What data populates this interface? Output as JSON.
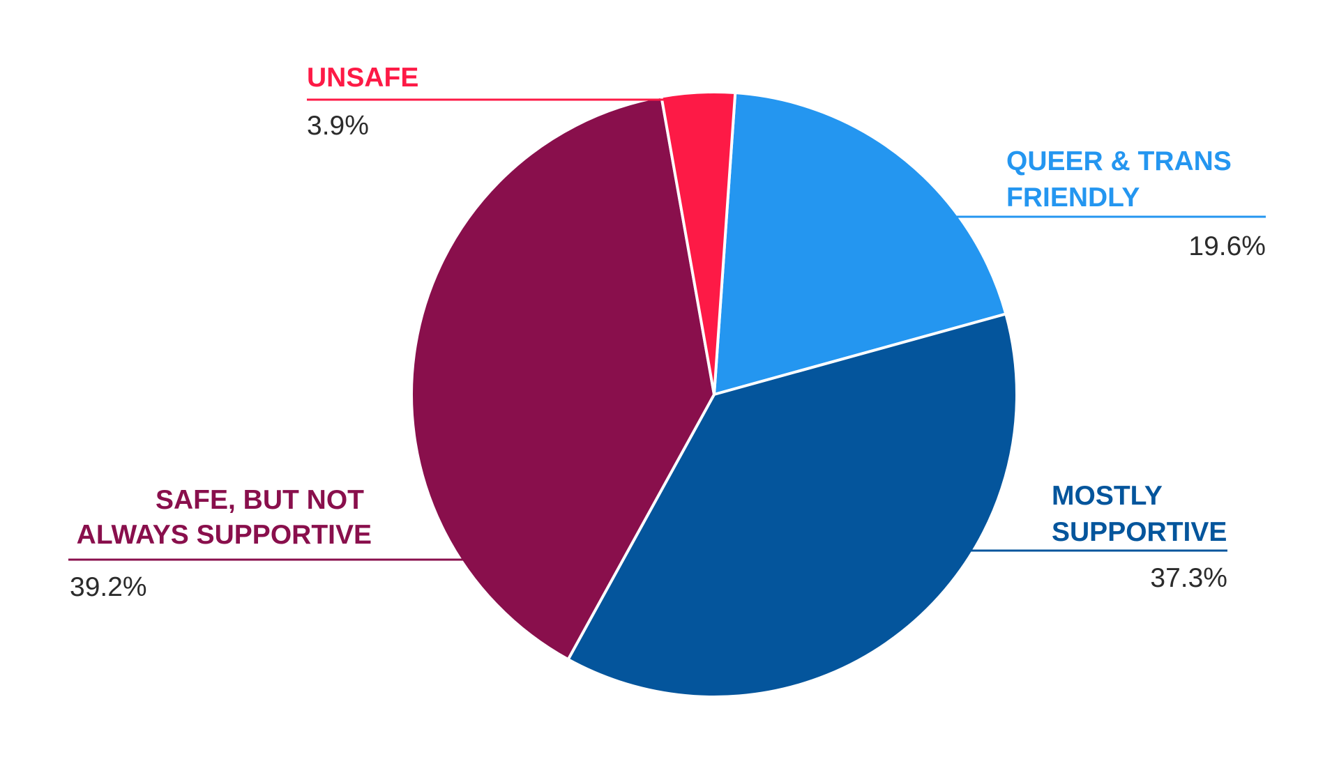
{
  "chart_data": {
    "type": "pie",
    "title": "",
    "start_angle_deg": 4,
    "direction": "clockwise",
    "slices": [
      {
        "label_lines": [
          "QUEER & TRANS",
          "FRIENDLY"
        ],
        "value": 19.6,
        "value_text": "19.6%",
        "color": "#2496f0"
      },
      {
        "label_lines": [
          "MOSTLY",
          "SUPPORTIVE"
        ],
        "value": 37.3,
        "value_text": "37.3%",
        "color": "#04559c"
      },
      {
        "label_lines": [
          "SAFE, BUT NOT",
          "ALWAYS SUPPORTIVE"
        ],
        "value": 39.2,
        "value_text": "39.2%",
        "color": "#890f4c"
      },
      {
        "label_lines": [
          "UNSAFE"
        ],
        "value": 3.9,
        "value_text": "3.9%",
        "color": "#fd1a46"
      }
    ],
    "slice_border_color": "#ffffff",
    "legend": "none"
  }
}
